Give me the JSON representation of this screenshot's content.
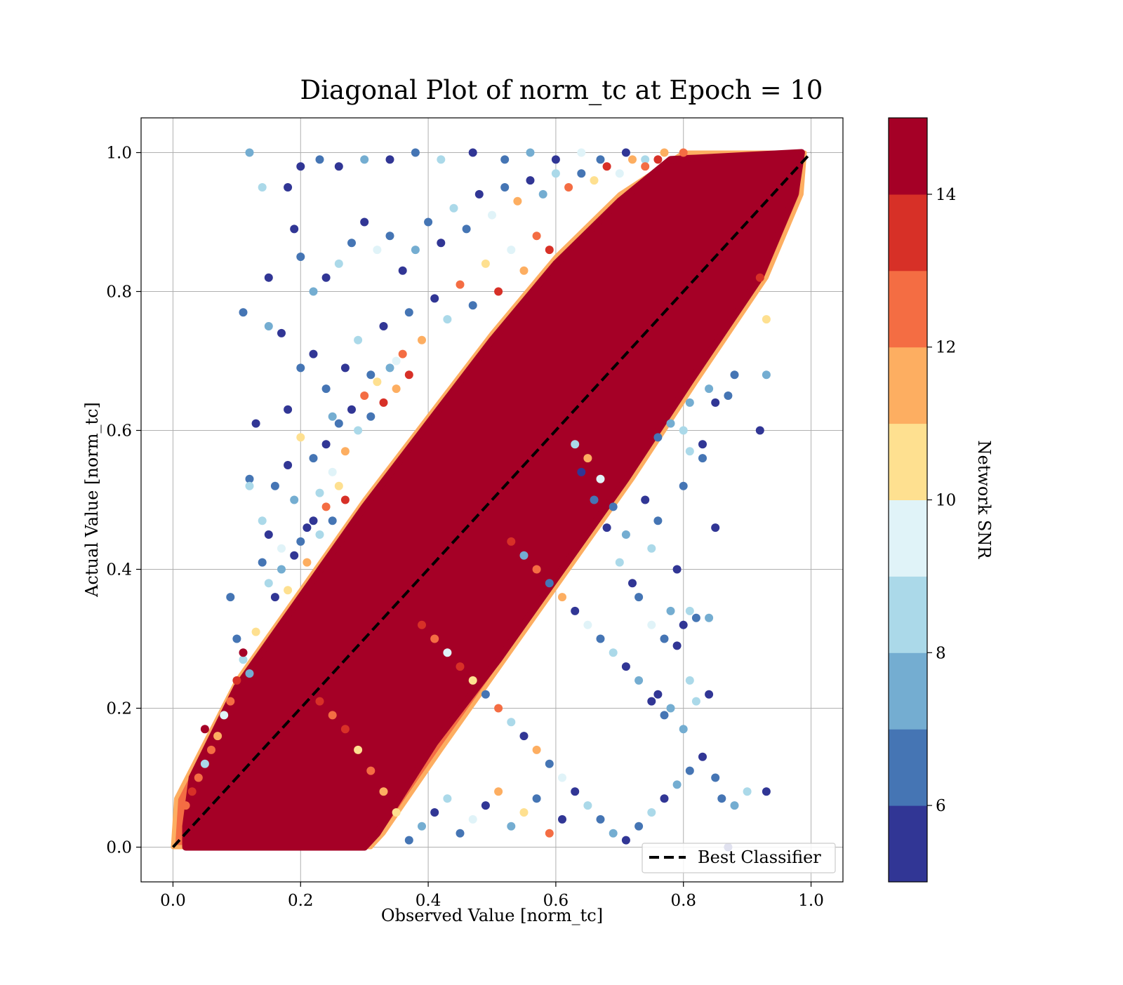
{
  "chart_data": {
    "type": "scatter",
    "title": "Diagonal Plot of norm_tc at Epoch = 10",
    "xlabel": "Observed Value [norm_tc]",
    "ylabel": "Actual Value [norm_tc]",
    "xlim": [
      -0.05,
      1.05
    ],
    "ylim": [
      -0.05,
      1.05
    ],
    "xticks": [
      0.0,
      0.2,
      0.4,
      0.6,
      0.8,
      1.0
    ],
    "xtick_labels": [
      "0.0",
      "0.2",
      "0.4",
      "0.6",
      "0.8",
      "1.0"
    ],
    "yticks": [
      0.0,
      0.2,
      0.4,
      0.6,
      0.8,
      1.0
    ],
    "ytick_labels": [
      "0.0",
      "0.2",
      "0.4",
      "0.6",
      "0.8",
      "1.0"
    ],
    "grid": true,
    "legend": {
      "position": "lower-right",
      "entries": [
        "Best Classifier"
      ]
    },
    "reference_line": {
      "name": "Best Classifier",
      "style": "dashed",
      "color": "#000000",
      "points": [
        [
          0,
          0
        ],
        [
          1,
          1
        ]
      ]
    },
    "colorbar": {
      "label": "Network SNR",
      "range": [
        5,
        15
      ],
      "ticks": [
        6,
        8,
        10,
        12,
        14
      ],
      "tick_labels": [
        "6",
        "8",
        "10",
        "12",
        "14"
      ],
      "bins": [
        {
          "from": 5,
          "to": 6,
          "color": "#313695"
        },
        {
          "from": 6,
          "to": 7,
          "color": "#4575b4"
        },
        {
          "from": 7,
          "to": 8,
          "color": "#74add1"
        },
        {
          "from": 8,
          "to": 9,
          "color": "#abd9e9"
        },
        {
          "from": 9,
          "to": 10,
          "color": "#e0f3f8"
        },
        {
          "from": 10,
          "to": 11,
          "color": "#fee090"
        },
        {
          "from": 11,
          "to": 12,
          "color": "#fdae61"
        },
        {
          "from": 12,
          "to": 13,
          "color": "#f46d43"
        },
        {
          "from": 13,
          "to": 14,
          "color": "#d73027"
        },
        {
          "from": 14,
          "to": 15,
          "color": "#a50026"
        }
      ]
    },
    "points": [
      [
        0.12,
        1.0,
        7
      ],
      [
        0.14,
        0.95,
        8
      ],
      [
        0.18,
        0.95,
        5
      ],
      [
        0.2,
        0.98,
        5
      ],
      [
        0.23,
        0.99,
        6
      ],
      [
        0.26,
        0.98,
        5
      ],
      [
        0.3,
        0.99,
        7
      ],
      [
        0.34,
        0.99,
        5
      ],
      [
        0.38,
        1.0,
        6
      ],
      [
        0.42,
        0.99,
        8
      ],
      [
        0.47,
        1.0,
        5
      ],
      [
        0.52,
        0.99,
        6
      ],
      [
        0.56,
        1.0,
        7
      ],
      [
        0.6,
        0.99,
        5
      ],
      [
        0.64,
        1.0,
        9
      ],
      [
        0.67,
        0.99,
        6
      ],
      [
        0.71,
        1.0,
        5
      ],
      [
        0.74,
        0.99,
        8
      ],
      [
        0.77,
        1.0,
        11
      ],
      [
        0.8,
        1.0,
        12
      ],
      [
        0.19,
        0.89,
        5
      ],
      [
        0.2,
        0.85,
        6
      ],
      [
        0.22,
        0.8,
        7
      ],
      [
        0.24,
        0.82,
        5
      ],
      [
        0.26,
        0.84,
        8
      ],
      [
        0.28,
        0.87,
        6
      ],
      [
        0.3,
        0.9,
        5
      ],
      [
        0.32,
        0.86,
        9
      ],
      [
        0.34,
        0.88,
        6
      ],
      [
        0.36,
        0.83,
        5
      ],
      [
        0.38,
        0.86,
        7
      ],
      [
        0.4,
        0.9,
        6
      ],
      [
        0.42,
        0.87,
        5
      ],
      [
        0.44,
        0.92,
        8
      ],
      [
        0.46,
        0.89,
        6
      ],
      [
        0.48,
        0.94,
        5
      ],
      [
        0.5,
        0.91,
        9
      ],
      [
        0.52,
        0.95,
        6
      ],
      [
        0.54,
        0.93,
        11
      ],
      [
        0.56,
        0.96,
        5
      ],
      [
        0.58,
        0.94,
        7
      ],
      [
        0.6,
        0.97,
        8
      ],
      [
        0.62,
        0.95,
        12
      ],
      [
        0.64,
        0.97,
        6
      ],
      [
        0.66,
        0.96,
        10
      ],
      [
        0.68,
        0.98,
        13
      ],
      [
        0.7,
        0.97,
        9
      ],
      [
        0.72,
        0.99,
        11
      ],
      [
        0.74,
        0.98,
        12
      ],
      [
        0.76,
        0.99,
        13
      ],
      [
        0.15,
        0.82,
        5
      ],
      [
        0.11,
        0.77,
        6
      ],
      [
        0.13,
        0.61,
        5
      ],
      [
        0.15,
        0.75,
        7
      ],
      [
        0.17,
        0.74,
        5
      ],
      [
        0.18,
        0.63,
        5
      ],
      [
        0.2,
        0.69,
        6
      ],
      [
        0.22,
        0.71,
        5
      ],
      [
        0.24,
        0.66,
        6
      ],
      [
        0.25,
        0.62,
        7
      ],
      [
        0.27,
        0.69,
        5
      ],
      [
        0.29,
        0.73,
        8
      ],
      [
        0.31,
        0.68,
        6
      ],
      [
        0.33,
        0.75,
        5
      ],
      [
        0.35,
        0.7,
        9
      ],
      [
        0.37,
        0.77,
        6
      ],
      [
        0.39,
        0.73,
        11
      ],
      [
        0.41,
        0.79,
        5
      ],
      [
        0.43,
        0.76,
        8
      ],
      [
        0.45,
        0.81,
        12
      ],
      [
        0.47,
        0.78,
        6
      ],
      [
        0.49,
        0.84,
        10
      ],
      [
        0.51,
        0.8,
        13
      ],
      [
        0.53,
        0.86,
        9
      ],
      [
        0.55,
        0.83,
        11
      ],
      [
        0.57,
        0.88,
        12
      ],
      [
        0.59,
        0.86,
        13
      ],
      [
        0.12,
        0.53,
        6
      ],
      [
        0.12,
        0.52,
        8
      ],
      [
        0.14,
        0.47,
        8
      ],
      [
        0.15,
        0.45,
        5
      ],
      [
        0.16,
        0.52,
        6
      ],
      [
        0.17,
        0.43,
        9
      ],
      [
        0.18,
        0.55,
        5
      ],
      [
        0.19,
        0.5,
        7
      ],
      [
        0.2,
        0.59,
        10
      ],
      [
        0.21,
        0.46,
        5
      ],
      [
        0.22,
        0.56,
        6
      ],
      [
        0.23,
        0.51,
        8
      ],
      [
        0.24,
        0.58,
        5
      ],
      [
        0.25,
        0.54,
        9
      ],
      [
        0.26,
        0.61,
        6
      ],
      [
        0.27,
        0.57,
        11
      ],
      [
        0.28,
        0.63,
        5
      ],
      [
        0.29,
        0.6,
        8
      ],
      [
        0.3,
        0.65,
        12
      ],
      [
        0.31,
        0.62,
        6
      ],
      [
        0.32,
        0.67,
        10
      ],
      [
        0.33,
        0.64,
        13
      ],
      [
        0.34,
        0.69,
        7
      ],
      [
        0.35,
        0.66,
        11
      ],
      [
        0.36,
        0.71,
        12
      ],
      [
        0.37,
        0.68,
        13
      ],
      [
        0.14,
        0.41,
        6
      ],
      [
        0.15,
        0.38,
        8
      ],
      [
        0.16,
        0.36,
        5
      ],
      [
        0.17,
        0.4,
        7
      ],
      [
        0.18,
        0.37,
        10
      ],
      [
        0.19,
        0.42,
        5
      ],
      [
        0.2,
        0.44,
        6
      ],
      [
        0.21,
        0.41,
        11
      ],
      [
        0.22,
        0.47,
        5
      ],
      [
        0.23,
        0.45,
        8
      ],
      [
        0.24,
        0.49,
        12
      ],
      [
        0.25,
        0.47,
        6
      ],
      [
        0.26,
        0.52,
        10
      ],
      [
        0.27,
        0.5,
        13
      ],
      [
        0.09,
        0.36,
        6
      ],
      [
        0.1,
        0.3,
        6
      ],
      [
        0.11,
        0.27,
        8
      ],
      [
        0.12,
        0.25,
        7
      ],
      [
        0.13,
        0.31,
        10
      ],
      [
        0.1,
        0.24,
        13
      ],
      [
        0.09,
        0.21,
        12
      ],
      [
        0.08,
        0.19,
        9
      ],
      [
        0.07,
        0.16,
        11
      ],
      [
        0.06,
        0.14,
        12
      ],
      [
        0.05,
        0.12,
        8
      ],
      [
        0.04,
        0.1,
        12
      ],
      [
        0.05,
        0.17,
        14
      ],
      [
        0.03,
        0.08,
        13
      ],
      [
        0.02,
        0.06,
        12
      ],
      [
        0.11,
        0.28,
        14
      ],
      [
        0.87,
        0.0,
        5
      ],
      [
        0.85,
        0.1,
        6
      ],
      [
        0.84,
        0.22,
        5
      ],
      [
        0.86,
        0.07,
        6
      ],
      [
        0.88,
        0.06,
        7
      ],
      [
        0.9,
        0.08,
        8
      ],
      [
        0.93,
        0.08,
        5
      ],
      [
        0.82,
        0.21,
        8
      ],
      [
        0.81,
        0.24,
        8
      ],
      [
        0.8,
        0.32,
        5
      ],
      [
        0.79,
        0.4,
        5
      ],
      [
        0.78,
        0.34,
        7
      ],
      [
        0.77,
        0.3,
        6
      ],
      [
        0.76,
        0.47,
        6
      ],
      [
        0.75,
        0.43,
        8
      ],
      [
        0.74,
        0.5,
        5
      ],
      [
        0.73,
        0.36,
        6
      ],
      [
        0.72,
        0.38,
        5
      ],
      [
        0.71,
        0.45,
        7
      ],
      [
        0.7,
        0.41,
        8
      ],
      [
        0.69,
        0.49,
        6
      ],
      [
        0.68,
        0.46,
        5
      ],
      [
        0.67,
        0.53,
        9
      ],
      [
        0.66,
        0.5,
        6
      ],
      [
        0.65,
        0.56,
        11
      ],
      [
        0.64,
        0.54,
        5
      ],
      [
        0.63,
        0.58,
        8
      ],
      [
        0.85,
        0.46,
        5
      ],
      [
        0.84,
        0.33,
        7
      ],
      [
        0.81,
        0.57,
        8
      ],
      [
        0.8,
        0.52,
        6
      ],
      [
        0.79,
        0.29,
        5
      ],
      [
        0.83,
        0.58,
        5
      ],
      [
        0.85,
        0.64,
        5
      ],
      [
        0.84,
        0.66,
        7
      ],
      [
        0.88,
        0.68,
        6
      ],
      [
        0.92,
        0.6,
        5
      ],
      [
        0.93,
        0.68,
        7
      ],
      [
        0.87,
        0.65,
        6
      ],
      [
        0.83,
        0.56,
        6
      ],
      [
        0.8,
        0.6,
        8
      ],
      [
        0.81,
        0.64,
        7
      ],
      [
        0.92,
        0.82,
        13
      ],
      [
        0.93,
        0.76,
        10
      ],
      [
        0.78,
        0.61,
        7
      ],
      [
        0.76,
        0.59,
        6
      ],
      [
        0.8,
        0.17,
        7
      ],
      [
        0.77,
        0.19,
        6
      ],
      [
        0.75,
        0.21,
        5
      ],
      [
        0.73,
        0.24,
        7
      ],
      [
        0.71,
        0.26,
        5
      ],
      [
        0.69,
        0.28,
        8
      ],
      [
        0.67,
        0.3,
        6
      ],
      [
        0.65,
        0.32,
        9
      ],
      [
        0.63,
        0.34,
        5
      ],
      [
        0.61,
        0.36,
        11
      ],
      [
        0.59,
        0.38,
        6
      ],
      [
        0.57,
        0.4,
        12
      ],
      [
        0.55,
        0.42,
        7
      ],
      [
        0.53,
        0.44,
        13
      ],
      [
        0.83,
        0.13,
        5
      ],
      [
        0.81,
        0.11,
        6
      ],
      [
        0.79,
        0.09,
        7
      ],
      [
        0.77,
        0.07,
        5
      ],
      [
        0.75,
        0.05,
        8
      ],
      [
        0.73,
        0.03,
        6
      ],
      [
        0.71,
        0.01,
        5
      ],
      [
        0.69,
        0.02,
        7
      ],
      [
        0.67,
        0.04,
        6
      ],
      [
        0.65,
        0.06,
        8
      ],
      [
        0.63,
        0.08,
        5
      ],
      [
        0.61,
        0.1,
        9
      ],
      [
        0.59,
        0.12,
        6
      ],
      [
        0.57,
        0.14,
        11
      ],
      [
        0.55,
        0.16,
        5
      ],
      [
        0.53,
        0.18,
        8
      ],
      [
        0.51,
        0.2,
        12
      ],
      [
        0.49,
        0.22,
        6
      ],
      [
        0.47,
        0.24,
        10
      ],
      [
        0.45,
        0.26,
        13
      ],
      [
        0.43,
        0.28,
        9
      ],
      [
        0.41,
        0.3,
        12
      ],
      [
        0.39,
        0.32,
        13
      ],
      [
        0.37,
        0.01,
        6
      ],
      [
        0.39,
        0.03,
        7
      ],
      [
        0.41,
        0.05,
        5
      ],
      [
        0.43,
        0.07,
        8
      ],
      [
        0.45,
        0.02,
        6
      ],
      [
        0.47,
        0.04,
        9
      ],
      [
        0.49,
        0.06,
        5
      ],
      [
        0.51,
        0.08,
        11
      ],
      [
        0.53,
        0.03,
        7
      ],
      [
        0.55,
        0.05,
        10
      ],
      [
        0.57,
        0.07,
        6
      ],
      [
        0.59,
        0.02,
        12
      ],
      [
        0.61,
        0.04,
        5
      ],
      [
        0.35,
        0.05,
        10
      ],
      [
        0.33,
        0.08,
        11
      ],
      [
        0.31,
        0.11,
        12
      ],
      [
        0.29,
        0.14,
        10
      ],
      [
        0.27,
        0.17,
        13
      ],
      [
        0.25,
        0.19,
        12
      ],
      [
        0.23,
        0.21,
        13
      ],
      [
        0.81,
        0.34,
        8
      ],
      [
        0.82,
        0.33,
        6
      ],
      [
        0.78,
        0.2,
        7
      ],
      [
        0.75,
        0.32,
        9
      ],
      [
        0.76,
        0.22,
        5
      ]
    ]
  }
}
